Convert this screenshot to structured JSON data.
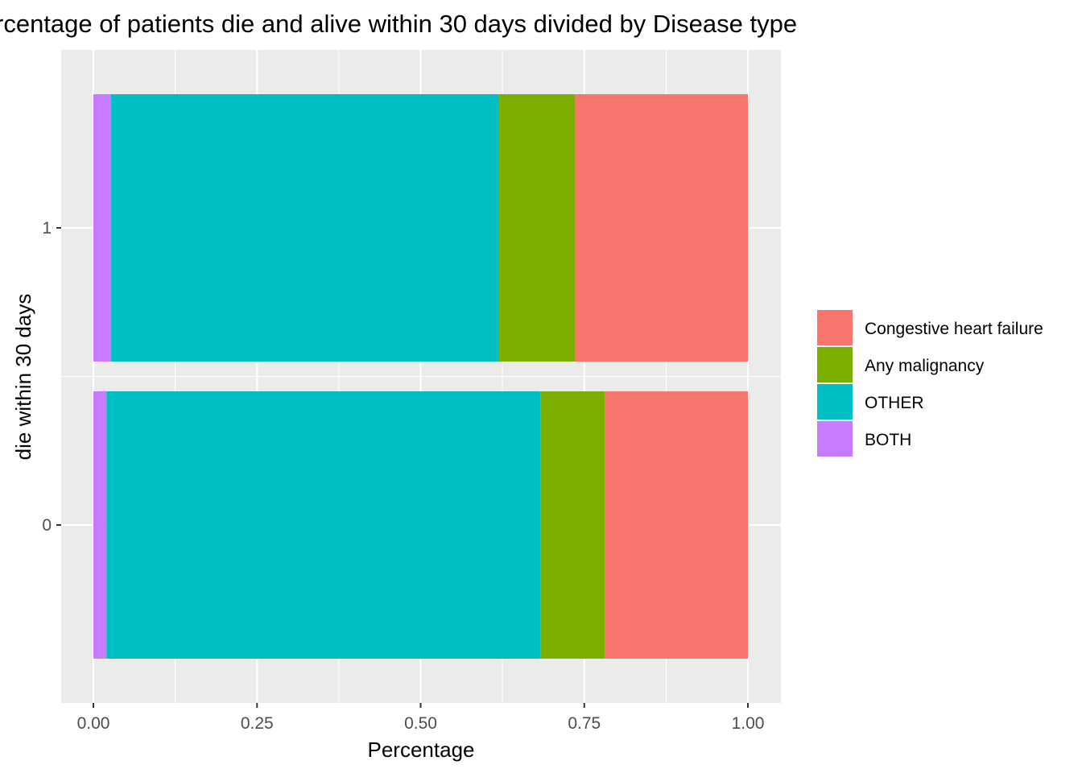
{
  "chart_data": {
    "type": "bar",
    "orientation": "horizontal",
    "stacked": true,
    "title": "rcentage of patients die and alive within 30 days divided by Disease type",
    "xlabel": "Percentage",
    "ylabel": "die within 30 days",
    "xlim": [
      0,
      1
    ],
    "x_ticks": [
      "0.00",
      "0.25",
      "0.50",
      "0.75",
      "1.00"
    ],
    "categories": [
      "0",
      "1"
    ],
    "series": [
      {
        "name": "BOTH",
        "color": "#C77CFF",
        "values": [
          0.02,
          0.027
        ]
      },
      {
        "name": "OTHER",
        "color": "#00BFC4",
        "values": [
          0.663,
          0.593
        ]
      },
      {
        "name": "Any malignancy",
        "color": "#7CAE00",
        "values": [
          0.098,
          0.116
        ]
      },
      {
        "name": "Congestive heart failure",
        "color": "#F8766D",
        "values": [
          0.219,
          0.264
        ]
      }
    ],
    "legend_order": [
      "Congestive heart failure",
      "Any malignancy",
      "OTHER",
      "BOTH"
    ],
    "legend_position": "right",
    "grid": true,
    "panel_background": "#EBEBEB",
    "grid_color": "#FFFFFF"
  }
}
